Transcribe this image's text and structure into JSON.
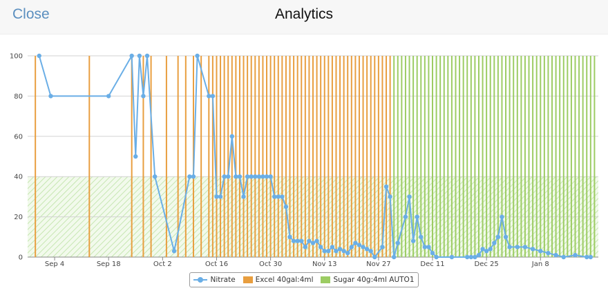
{
  "header": {
    "close_label": "Close",
    "title": "Analytics"
  },
  "colors": {
    "nitrate": "#6aaee6",
    "excel": "#e89e3f",
    "sugar": "#9ccc63",
    "target_band": "#7ccd5a"
  },
  "legend": {
    "items": [
      "Nitrate",
      "Excel 40gal:4ml",
      "Sugar 40g:4ml AUTO1"
    ]
  },
  "chart_data": {
    "type": "line",
    "ylim": [
      0,
      100
    ],
    "y_ticks": [
      0,
      20,
      40,
      60,
      80,
      100
    ],
    "x_tick_labels": [
      "Sep 4",
      "Sep 18",
      "Oct 2",
      "Oct 16",
      "Oct 30",
      "Nov 13",
      "Nov 27",
      "Dec 11",
      "Dec 25",
      "Jan 8"
    ],
    "x_tick_days": [
      5,
      19,
      33,
      47,
      61,
      75,
      89,
      103,
      117,
      131
    ],
    "target_band": [
      0,
      40
    ],
    "series": [
      {
        "name": "Nitrate",
        "points": [
          [
            1,
            100
          ],
          [
            4,
            80
          ],
          [
            19,
            80
          ],
          [
            25,
            100
          ],
          [
            26,
            50
          ],
          [
            27,
            100
          ],
          [
            28,
            80
          ],
          [
            29,
            100
          ],
          [
            31,
            40
          ],
          [
            36,
            3
          ],
          [
            40,
            40
          ],
          [
            41,
            40
          ],
          [
            42,
            100
          ],
          [
            45,
            80
          ],
          [
            46,
            80
          ],
          [
            47,
            30
          ],
          [
            48,
            30
          ],
          [
            49,
            40
          ],
          [
            50,
            40
          ],
          [
            51,
            60
          ],
          [
            52,
            40
          ],
          [
            53,
            40
          ],
          [
            54,
            30
          ],
          [
            55,
            40
          ],
          [
            56,
            40
          ],
          [
            57,
            40
          ],
          [
            58,
            40
          ],
          [
            59,
            40
          ],
          [
            60,
            40
          ],
          [
            61,
            40
          ],
          [
            62,
            30
          ],
          [
            63,
            30
          ],
          [
            64,
            30
          ],
          [
            65,
            25
          ],
          [
            66,
            10
          ],
          [
            67,
            8
          ],
          [
            68,
            8
          ],
          [
            69,
            8
          ],
          [
            70,
            5
          ],
          [
            71,
            8
          ],
          [
            72,
            7
          ],
          [
            73,
            8
          ],
          [
            74,
            5
          ],
          [
            75,
            3
          ],
          [
            76,
            3
          ],
          [
            77,
            5
          ],
          [
            78,
            3
          ],
          [
            79,
            4
          ],
          [
            80,
            3
          ],
          [
            81,
            2
          ],
          [
            82,
            5
          ],
          [
            83,
            7
          ],
          [
            84,
            6
          ],
          [
            85,
            5
          ],
          [
            86,
            4
          ],
          [
            87,
            3
          ],
          [
            88,
            0
          ],
          [
            90,
            5
          ],
          [
            91,
            35
          ],
          [
            92,
            30
          ],
          [
            93,
            0
          ],
          [
            94,
            7
          ],
          [
            96,
            20
          ],
          [
            97,
            30
          ],
          [
            98,
            8
          ],
          [
            99,
            20
          ],
          [
            100,
            10
          ],
          [
            101,
            5
          ],
          [
            102,
            5
          ],
          [
            103,
            2
          ],
          [
            104,
            0
          ],
          [
            108,
            0
          ],
          [
            112,
            0
          ],
          [
            113,
            0
          ],
          [
            114,
            0
          ],
          [
            115,
            1
          ],
          [
            116,
            4
          ],
          [
            117,
            3
          ],
          [
            118,
            4
          ],
          [
            119,
            7
          ],
          [
            120,
            10
          ],
          [
            121,
            20
          ],
          [
            122,
            10
          ],
          [
            123,
            5
          ],
          [
            125,
            5
          ],
          [
            127,
            5
          ],
          [
            129,
            4
          ],
          [
            131,
            3
          ],
          [
            133,
            2
          ],
          [
            135,
            1
          ],
          [
            137,
            0
          ],
          [
            140,
            1
          ],
          [
            143,
            0
          ],
          [
            144,
            0
          ]
        ]
      },
      {
        "name": "Excel 40gal:4ml",
        "days": [
          0,
          14,
          25,
          28,
          30,
          34,
          37,
          39,
          41,
          43,
          45,
          46,
          47,
          48,
          49,
          50,
          51,
          52,
          53,
          54,
          55,
          56,
          57,
          58,
          59,
          60,
          61,
          62,
          63,
          64,
          65,
          66,
          67,
          68,
          69,
          70,
          71,
          72,
          73,
          74,
          75,
          76,
          77,
          78,
          79,
          80,
          81,
          82,
          83,
          84,
          85,
          86,
          87,
          88,
          89,
          90,
          91,
          92
        ]
      },
      {
        "name": "Sugar 40g:4ml AUTO1",
        "days": [
          93,
          94,
          95,
          96,
          97,
          98,
          99,
          100,
          101,
          102,
          103,
          104,
          105,
          106,
          107,
          108,
          109,
          110,
          111,
          112,
          113,
          114,
          115,
          116,
          117,
          118,
          119,
          120,
          121,
          122,
          123,
          124,
          125,
          126,
          127,
          128,
          129,
          130,
          131,
          132,
          133,
          134,
          135,
          136,
          137,
          138,
          139,
          140,
          141,
          142,
          143,
          144,
          145
        ]
      }
    ]
  }
}
